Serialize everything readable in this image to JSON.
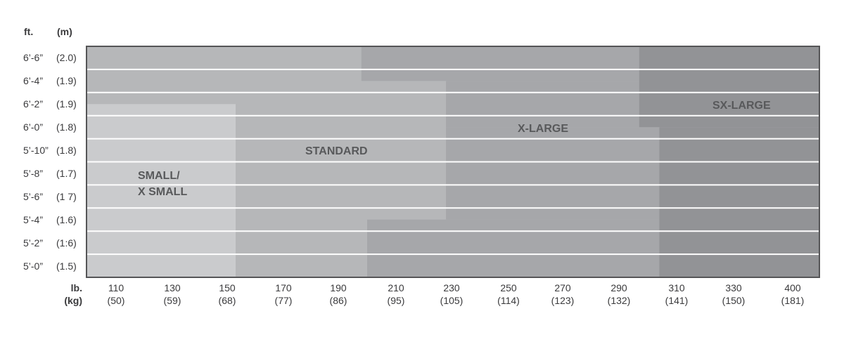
{
  "chart_data": {
    "type": "heatmap",
    "y_unit_labels": {
      "primary": "ft.",
      "secondary": "(m)"
    },
    "x_unit_labels": {
      "primary": "lb.",
      "secondary": "(kg)"
    },
    "y_ticks": [
      {
        "ft": "6’-6”",
        "m": "(2.0)",
        "inches": 78
      },
      {
        "ft": "6’-4”",
        "m": "(1.9)",
        "inches": 76
      },
      {
        "ft": "6’-2”",
        "m": "(1.9)",
        "inches": 74
      },
      {
        "ft": "6’-0”",
        "m": "(1.8)",
        "inches": 72
      },
      {
        "ft": "5’-10”",
        "m": "(1.8)",
        "inches": 70
      },
      {
        "ft": "5’-8”",
        "m": "(1.7)",
        "inches": 68
      },
      {
        "ft": "5’-6”",
        "m": "(1 7)",
        "inches": 66
      },
      {
        "ft": "5’-4”",
        "m": "(1.6)",
        "inches": 64
      },
      {
        "ft": "5’-2”",
        "m": "(1:6)",
        "inches": 62
      },
      {
        "ft": "5’-0”",
        "m": "(1.5)",
        "inches": 60
      }
    ],
    "x_ticks": [
      {
        "lb": "110",
        "kg": "(50)"
      },
      {
        "lb": "130",
        "kg": "(59)"
      },
      {
        "lb": "150",
        "kg": "(68)"
      },
      {
        "lb": "170",
        "kg": "(77)"
      },
      {
        "lb": "190",
        "kg": "(86)"
      },
      {
        "lb": "210",
        "kg": "(95)"
      },
      {
        "lb": "230",
        "kg": "(105)"
      },
      {
        "lb": "250",
        "kg": "(114)"
      },
      {
        "lb": "270",
        "kg": "(123)"
      },
      {
        "lb": "290",
        "kg": "(132)"
      },
      {
        "lb": "310",
        "kg": "(141)"
      },
      {
        "lb": "330",
        "kg": "(150)"
      },
      {
        "lb": "400",
        "kg": "(181)"
      }
    ],
    "xlim_lb": [
      100,
      432
    ],
    "ylim_inches": [
      59,
      79
    ],
    "regions": [
      {
        "name": "STANDARD",
        "label_lines": [
          "STANDARD"
        ],
        "color": "#b6b7b9",
        "rects": [
          {
            "lb": [
              100,
              432
            ],
            "in": [
              59,
              79
            ]
          }
        ]
      },
      {
        "name": "SMALL/ X SMALL",
        "label_lines": [
          "SMALL/",
          "X SMALL"
        ],
        "color": "#cacbcd",
        "rects": [
          {
            "lb": [
              100,
              153
            ],
            "in": [
              59,
              74
            ]
          }
        ]
      },
      {
        "name": "X-LARGE",
        "label_lines": [
          "X-LARGE"
        ],
        "color": "#a6a7aa",
        "rects": [
          {
            "lb": [
              198,
              297
            ],
            "in": [
              76,
              79
            ]
          },
          {
            "lb": [
              228,
              297
            ],
            "in": [
              72,
              76
            ]
          },
          {
            "lb": [
              228,
              304
            ],
            "in": [
              64,
              72
            ]
          },
          {
            "lb": [
              200,
              304
            ],
            "in": [
              59,
              64
            ]
          }
        ]
      },
      {
        "name": "SX-LARGE",
        "label_lines": [
          "SX-LARGE"
        ],
        "color": "#929396",
        "rects": [
          {
            "lb": [
              297,
              432
            ],
            "in": [
              72,
              79
            ]
          },
          {
            "lb": [
              304,
              432
            ],
            "in": [
              59,
              72
            ]
          }
        ]
      }
    ],
    "label_color": "#58595b",
    "border_color": "#555557",
    "grid": true
  }
}
